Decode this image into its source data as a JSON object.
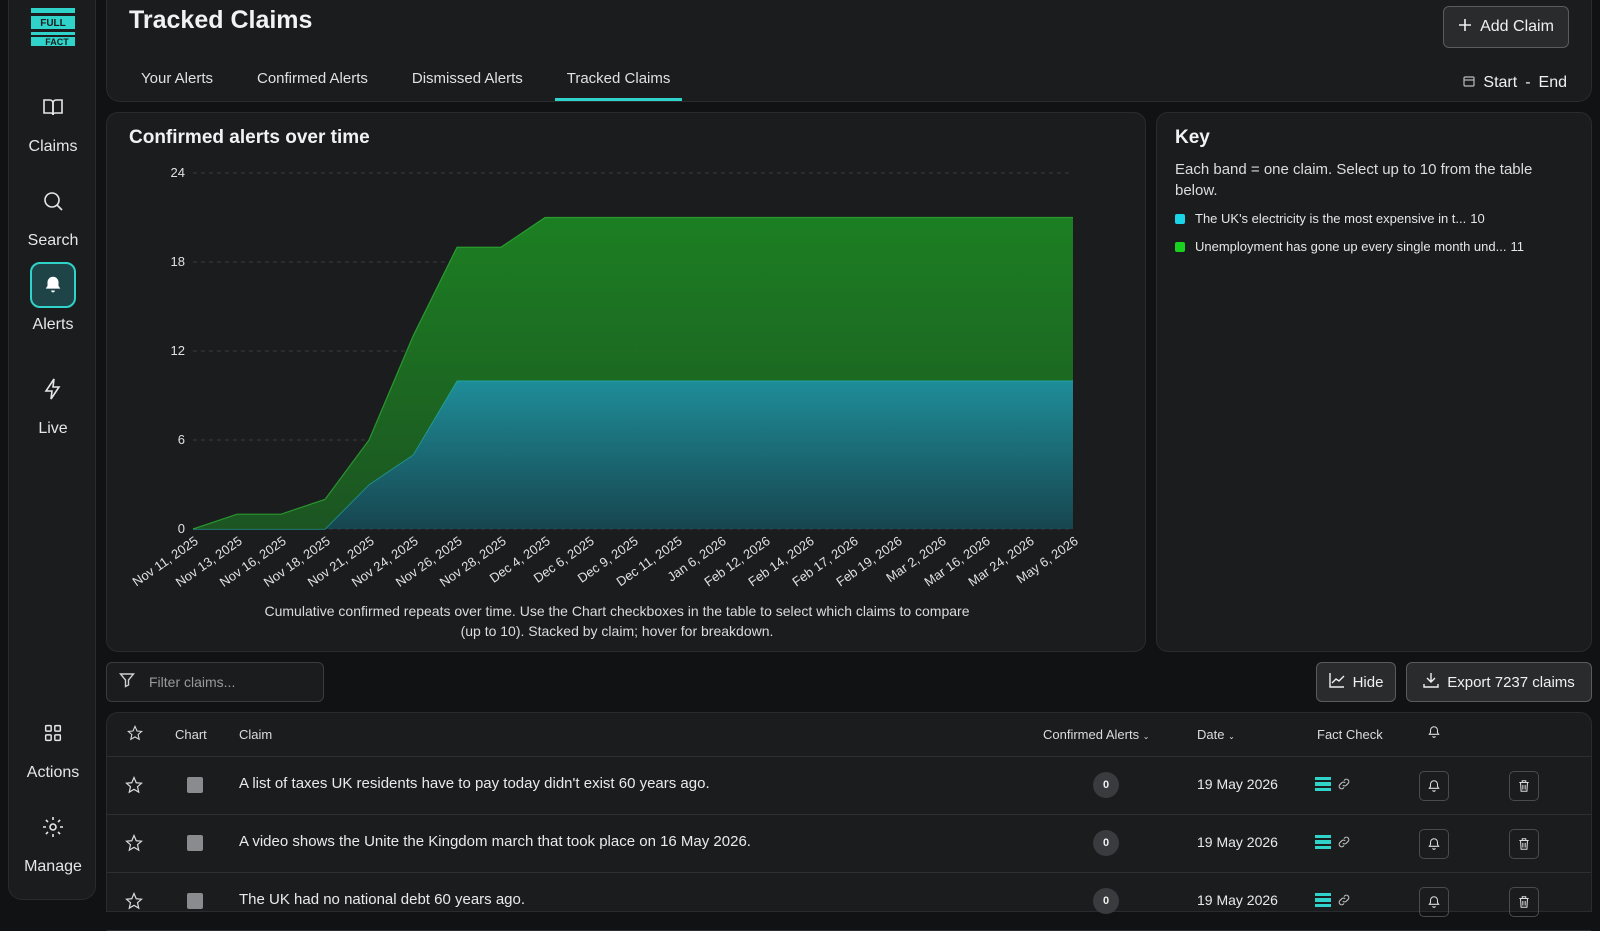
{
  "sidebar": {
    "logo_text": "FULL FACT",
    "items": [
      {
        "label": "Claims",
        "icon": "book-icon"
      },
      {
        "label": "Search",
        "icon": "search-icon"
      },
      {
        "label": "Alerts",
        "icon": "bell-icon",
        "active": true
      },
      {
        "label": "Live",
        "icon": "lightning-icon"
      },
      {
        "label": "Actions",
        "icon": "grid-icon"
      },
      {
        "label": "Manage",
        "icon": "gear-icon"
      }
    ]
  },
  "header": {
    "title": "Tracked Claims",
    "tabs": [
      "Your Alerts",
      "Confirmed Alerts",
      "Dismissed Alerts",
      "Tracked Claims"
    ],
    "active_tab": "Tracked Claims",
    "add_claim_label": "Add Claim",
    "date_start": "Start",
    "date_sep": "-",
    "date_end": "End"
  },
  "chart_panel": {
    "title": "Confirmed alerts over time",
    "caption": "Cumulative confirmed repeats over time. Use the Chart checkboxes in the table to select which claims to compare (up to 10). Stacked by claim; hover for breakdown."
  },
  "chart_data": {
    "type": "area",
    "stacked": true,
    "title": "Confirmed alerts over time",
    "ylim": [
      0,
      24
    ],
    "yticks": [
      0,
      6,
      12,
      18,
      24
    ],
    "x": [
      "Nov 11, 2025",
      "Nov 13, 2025",
      "Nov 16, 2025",
      "Nov 18, 2025",
      "Nov 21, 2025",
      "Nov 24, 2025",
      "Nov 26, 2025",
      "Nov 28, 2025",
      "Dec 4, 2025",
      "Dec 6, 2025",
      "Dec 9, 2025",
      "Dec 11, 2025",
      "Jan 6, 2026",
      "Feb 12, 2026",
      "Feb 14, 2026",
      "Feb 17, 2026",
      "Feb 19, 2026",
      "Mar 2, 2026",
      "Mar 16, 2026",
      "Mar 24, 2026",
      "May 6, 2026"
    ],
    "series": [
      {
        "name": "The UK's electricity is the most expensive in t...",
        "color": "#1fb8c4",
        "values": [
          0,
          0,
          0,
          0,
          3,
          5,
          10,
          10,
          10,
          10,
          10,
          10,
          10,
          10,
          10,
          10,
          10,
          10,
          10,
          10,
          10
        ]
      },
      {
        "name": "Unemployment has gone up every single month und...",
        "color": "#1f9e2e",
        "values": [
          0,
          1,
          1,
          2,
          3,
          8,
          9,
          9,
          11,
          11,
          11,
          11,
          11,
          11,
          11,
          11,
          11,
          11,
          11,
          11,
          11
        ]
      }
    ],
    "grid": true
  },
  "key": {
    "title": "Key",
    "description": "Each band = one claim. Select up to 10 from the table below.",
    "items": [
      {
        "label": "The UK's electricity is the most expensive in t...",
        "count": "10",
        "color": "#1ad4e8"
      },
      {
        "label": "Unemployment has gone up every single month und...",
        "count": "11",
        "color": "#19d21f"
      }
    ]
  },
  "toolbar": {
    "filter_placeholder": "Filter claims...",
    "hide_label": "Hide",
    "export_label": "Export 7237 claims"
  },
  "table": {
    "headers": {
      "chart": "Chart",
      "claim": "Claim",
      "confirmed": "Confirmed Alerts",
      "date": "Date",
      "fact_check": "Fact Check"
    },
    "rows": [
      {
        "claim": "A list of taxes UK residents have to pay today didn't exist 60 years ago.",
        "confirmed": "0",
        "date": "19 May 2026"
      },
      {
        "claim": "A video shows the Unite the Kingdom march that took place on 16 May 2026.",
        "confirmed": "0",
        "date": "19 May 2026"
      },
      {
        "claim": "The UK had no national debt 60 years ago.",
        "confirmed": "0",
        "date": "19 May 2026"
      }
    ]
  },
  "colors": {
    "accent": "#2fd3c9",
    "background": "#111214",
    "panel": "#1b1c1e"
  }
}
